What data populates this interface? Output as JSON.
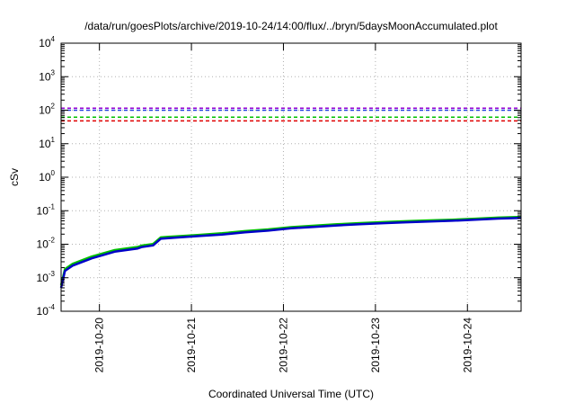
{
  "chart_data": {
    "type": "line",
    "title": "/data/run/goesPlots/archive/2019-10-24/14:00/flux/../bryn/5daysMoonAccumulated.plot",
    "xlabel": "Coordinated Universal Time (UTC)",
    "ylabel": "cSv",
    "y_scale": "log",
    "ylim": [
      0.0001,
      10000
    ],
    "xlim": [
      "2019-10-19T14:00",
      "2019-10-24T14:00"
    ],
    "grid": true,
    "x_ticks": [
      "2019-10-20",
      "2019-10-21",
      "2019-10-22",
      "2019-10-23",
      "2019-10-24"
    ],
    "y_ticks": [
      {
        "value": 0.0001,
        "base": "10",
        "exp": "-4"
      },
      {
        "value": 0.001,
        "base": "10",
        "exp": "-3"
      },
      {
        "value": 0.01,
        "base": "10",
        "exp": "-2"
      },
      {
        "value": 0.1,
        "base": "10",
        "exp": "-1"
      },
      {
        "value": 1,
        "base": "10",
        "exp": "0"
      },
      {
        "value": 10,
        "base": "10",
        "exp": "1"
      },
      {
        "value": 100,
        "base": "10",
        "exp": "2"
      },
      {
        "value": 1000,
        "base": "10",
        "exp": "3"
      },
      {
        "value": 10000,
        "base": "10",
        "exp": "4"
      }
    ],
    "reference_lines": [
      {
        "value": 115,
        "color": "#9400d3"
      },
      {
        "value": 100,
        "color": "#1f3fe0"
      },
      {
        "value": 62,
        "color": "#00c000"
      },
      {
        "value": 48,
        "color": "#e00000"
      }
    ],
    "series": [
      {
        "color": "#00c000",
        "x": [
          "2019-10-19T14:00",
          "2019-10-19T15:00",
          "2019-10-19T17:00",
          "2019-10-19T22:00",
          "2019-10-20T04:00",
          "2019-10-20T10:00",
          "2019-10-20T11:00",
          "2019-10-20T14:00",
          "2019-10-20T16:00",
          "2019-10-20T18:00",
          "2019-10-20T20:00",
          "2019-10-21T02:00",
          "2019-10-21T08:00",
          "2019-10-21T14:00",
          "2019-10-21T20:00",
          "2019-10-22T02:00",
          "2019-10-22T08:00",
          "2019-10-22T14:00",
          "2019-10-22T20:00",
          "2019-10-23T02:00",
          "2019-10-23T08:00",
          "2019-10-23T14:00",
          "2019-10-23T20:00",
          "2019-10-24T02:00",
          "2019-10-24T08:00",
          "2019-10-24T14:00"
        ],
        "values": [
          0.0006,
          0.0018,
          0.0026,
          0.0043,
          0.0067,
          0.0083,
          0.0091,
          0.0102,
          0.016,
          0.0166,
          0.0172,
          0.019,
          0.0212,
          0.0247,
          0.0278,
          0.0324,
          0.0358,
          0.0395,
          0.0428,
          0.0458,
          0.0487,
          0.0513,
          0.054,
          0.0577,
          0.0625,
          0.0655
        ]
      },
      {
        "color": "#0000c8",
        "x": [
          "2019-10-19T14:00",
          "2019-10-19T15:00",
          "2019-10-19T17:00",
          "2019-10-19T22:00",
          "2019-10-20T04:00",
          "2019-10-20T10:00",
          "2019-10-20T11:00",
          "2019-10-20T14:00",
          "2019-10-20T16:00",
          "2019-10-20T18:00",
          "2019-10-20T20:00",
          "2019-10-21T02:00",
          "2019-10-21T08:00",
          "2019-10-21T14:00",
          "2019-10-21T20:00",
          "2019-10-22T02:00",
          "2019-10-22T08:00",
          "2019-10-22T14:00",
          "2019-10-22T20:00",
          "2019-10-23T02:00",
          "2019-10-23T08:00",
          "2019-10-23T14:00",
          "2019-10-23T20:00",
          "2019-10-24T02:00",
          "2019-10-24T08:00",
          "2019-10-24T14:00"
        ],
        "values": [
          0.0005,
          0.0016,
          0.0023,
          0.0038,
          0.006,
          0.0075,
          0.0082,
          0.0092,
          0.0146,
          0.0152,
          0.0158,
          0.0175,
          0.0195,
          0.0226,
          0.0255,
          0.0298,
          0.033,
          0.0365,
          0.0396,
          0.0424,
          0.0452,
          0.0477,
          0.0502,
          0.0538,
          0.0583,
          0.0612
        ]
      }
    ]
  }
}
